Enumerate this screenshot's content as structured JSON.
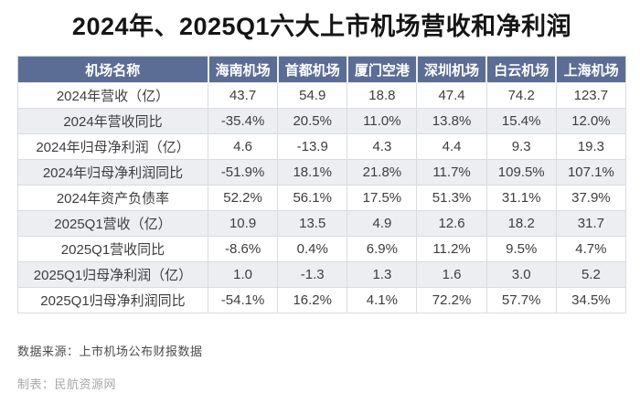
{
  "title": "2024年、2025Q1六大上市机场营收和净利润",
  "chart_data": {
    "type": "table",
    "title": "2024年、2025Q1六大上市机场营收和净利润",
    "columns": [
      "机场名称",
      "海南机场",
      "首都机场",
      "厦门空港",
      "深圳机场",
      "白云机场",
      "上海机场"
    ],
    "rows": [
      {
        "label": "2024年营收（亿）",
        "values": [
          "43.7",
          "54.9",
          "18.8",
          "47.4",
          "74.2",
          "123.7"
        ]
      },
      {
        "label": "2024年营收同比",
        "values": [
          "-35.4%",
          "20.5%",
          "11.0%",
          "13.8%",
          "15.4%",
          "12.0%"
        ]
      },
      {
        "label": "2024年归母净利润（亿）",
        "values": [
          "4.6",
          "-13.9",
          "4.3",
          "4.4",
          "9.3",
          "19.3"
        ]
      },
      {
        "label": "2024年归母净利润同比",
        "values": [
          "-51.9%",
          "18.1%",
          "21.8%",
          "11.7%",
          "109.5%",
          "107.1%"
        ]
      },
      {
        "label": "2024年资产负债率",
        "values": [
          "52.2%",
          "56.1%",
          "17.5%",
          "51.3%",
          "31.1%",
          "37.9%"
        ]
      },
      {
        "label": "2025Q1营收（亿）",
        "values": [
          "10.9",
          "13.5",
          "4.9",
          "12.6",
          "18.2",
          "31.7"
        ]
      },
      {
        "label": "2025Q1营收同比",
        "values": [
          "-8.6%",
          "0.4%",
          "6.9%",
          "11.2%",
          "9.5%",
          "4.7%"
        ]
      },
      {
        "label": "2025Q1归母净利润（亿）",
        "values": [
          "1.0",
          "-1.3",
          "1.3",
          "1.6",
          "3.0",
          "5.2"
        ]
      },
      {
        "label": "2025Q1归母净利润同比",
        "values": [
          "-54.1%",
          "16.2%",
          "4.1%",
          "72.2%",
          "57.7%",
          "34.5%"
        ]
      }
    ]
  },
  "footer": {
    "source": "数据来源：上市机场公布财报数据",
    "credit": "制表：民航资源网"
  },
  "colors": {
    "header_bg": "#5b6d94",
    "header_text": "#ffffff",
    "row_alt_bg": "#eceef2",
    "grid_border": "#d9dbe1",
    "outer_border": "#c9cdd7",
    "cell_text": "#3d3d40",
    "title_text": "#151515",
    "source_text": "#4b4b4d",
    "credit_text": "#a7a7a9"
  }
}
